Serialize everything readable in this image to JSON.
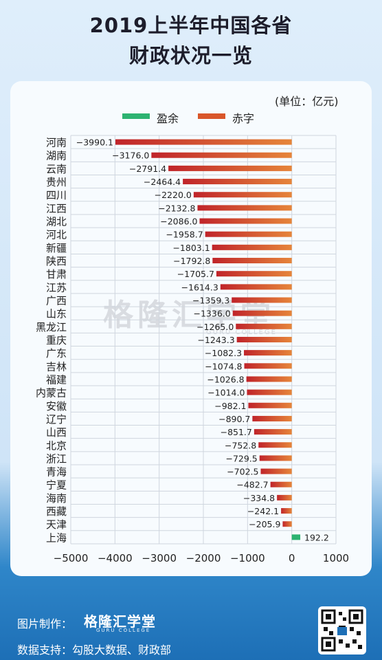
{
  "title_line1": "2019上半年中国各省",
  "title_line2": "财政状况一览",
  "unit": "(单位：亿元)",
  "legend": {
    "surplus": "盈余",
    "deficit": "赤字"
  },
  "colors": {
    "surplus": "#2db371",
    "deficit": "#d9562a",
    "deficit_dark": "#c0242a",
    "deficit_light": "#e6853a",
    "grid": "#cfd6de"
  },
  "chart_data": {
    "type": "bar",
    "orientation": "horizontal",
    "categories": [
      "河南",
      "湖南",
      "云南",
      "贵州",
      "四川",
      "江西",
      "湖北",
      "河北",
      "新疆",
      "陕西",
      "甘肃",
      "江苏",
      "广西",
      "山东",
      "黑龙江",
      "重庆",
      "广东",
      "吉林",
      "福建",
      "内蒙古",
      "安徽",
      "辽宁",
      "山西",
      "北京",
      "浙江",
      "青海",
      "宁夏",
      "海南",
      "西藏",
      "天津",
      "上海"
    ],
    "values": [
      -3990.1,
      -3176.0,
      -2791.4,
      -2464.4,
      -2220.0,
      -2132.8,
      -2086.0,
      -1958.7,
      -1803.1,
      -1792.8,
      -1705.7,
      -1614.3,
      -1359.3,
      -1336.0,
      -1265.0,
      -1243.3,
      -1082.3,
      -1074.8,
      -1026.8,
      -1014.0,
      -982.1,
      -890.7,
      -851.7,
      -752.8,
      -729.5,
      -702.5,
      -482.7,
      -334.8,
      -242.1,
      -205.9,
      192.2
    ],
    "value_labels": [
      "−3990.1",
      "−3176.0",
      "−2791.4",
      "−2464.4",
      "−2220.0",
      "−2132.8",
      "−2086.0",
      "−1958.7",
      "−1803.1",
      "−1792.8",
      "−1705.7",
      "−1614.3",
      "−1359.3",
      "−1336.0",
      "−1265.0",
      "−1243.3",
      "−1082.3",
      "−1074.8",
      "−1026.8",
      "−1014.0",
      "−982.1",
      "−890.7",
      "−851.7",
      "−752.8",
      "−729.5",
      "−702.5",
      "−482.7",
      "−334.8",
      "−242.1",
      "−205.9",
      "192.2"
    ],
    "xlim": [
      -5000,
      1000
    ],
    "xticks": [
      -5000,
      -4000,
      -3000,
      -2000,
      -1000,
      0,
      1000
    ],
    "xtick_labels": [
      "−5000",
      "−4000",
      "−3000",
      "−2000",
      "−1000",
      "0",
      "1000"
    ],
    "grid": true
  },
  "footer": {
    "credit_label": "图片制作：",
    "credit_logo": "格隆汇学堂",
    "credit_logo_sub": "GURU COLLEGE",
    "source": "数据支持：勾股大数据、财政部"
  },
  "watermark": {
    "text": "格隆汇学堂",
    "sub": "GURU COLLEGE"
  }
}
